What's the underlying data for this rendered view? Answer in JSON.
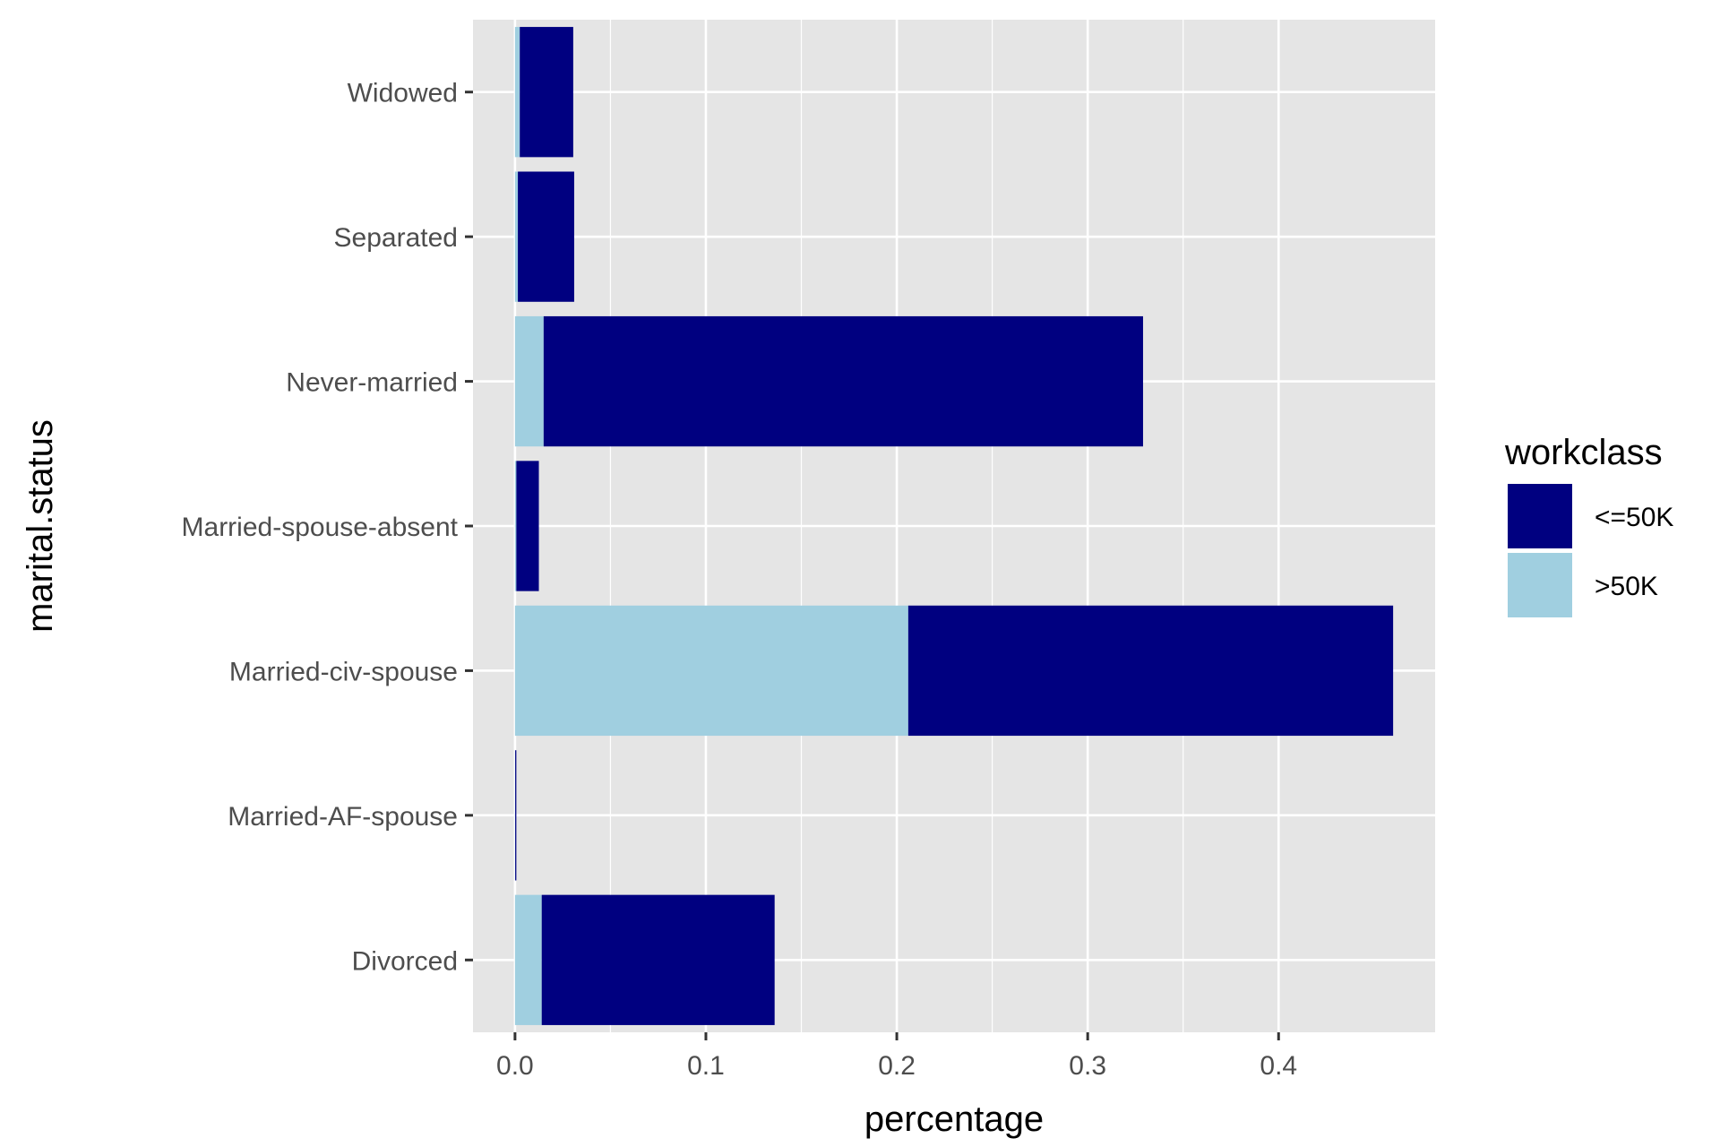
{
  "chart_data": {
    "type": "bar",
    "orientation": "horizontal",
    "stacked": true,
    "categories": [
      "Divorced",
      "Married-AF-spouse",
      "Married-civ-spouse",
      "Married-spouse-absent",
      "Never-married",
      "Separated",
      "Widowed"
    ],
    "series": [
      {
        "name": "<=50K",
        "color": "#000080",
        "values": [
          0.122,
          0.0006,
          0.254,
          0.0118,
          0.314,
          0.0295,
          0.028
        ]
      },
      {
        "name": ">50K",
        "color": "#a0cfe0",
        "values": [
          0.014,
          0.0001,
          0.206,
          0.0007,
          0.015,
          0.0015,
          0.0025
        ]
      }
    ],
    "stack_order": [
      ">50K",
      "<=50K"
    ],
    "xlabel": "percentage",
    "ylabel": "marital.status",
    "xlim": [
      -0.022,
      0.482
    ],
    "xticks": [
      0.0,
      0.1,
      0.2,
      0.3,
      0.4
    ],
    "xtick_labels": [
      "0.0",
      "0.1",
      "0.2",
      "0.3",
      "0.4"
    ],
    "grid": true,
    "panel_background": "#e5e5e5",
    "legend": {
      "title": "workclass",
      "position": "right"
    }
  }
}
